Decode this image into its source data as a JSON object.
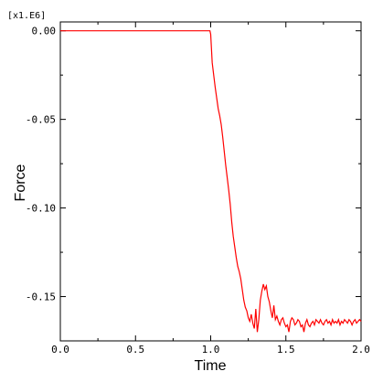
{
  "chart_data": {
    "type": "line",
    "title": "",
    "xlabel": "Time",
    "ylabel": "Force",
    "y_multiplier_label": "[x1.E6]",
    "xlim": [
      0.0,
      2.0
    ],
    "ylim": [
      -0.175,
      0.005
    ],
    "x_ticks": [
      {
        "value": 0.0,
        "label": "0.0"
      },
      {
        "value": 0.5,
        "label": "0.5"
      },
      {
        "value": 1.0,
        "label": "1.0"
      },
      {
        "value": 1.5,
        "label": "1.5"
      },
      {
        "value": 2.0,
        "label": "2.0"
      }
    ],
    "x_minor_step": 0.25,
    "y_ticks": [
      {
        "value": 0.0,
        "label": "0.00"
      },
      {
        "value": -0.05,
        "label": "-0.05"
      },
      {
        "value": -0.1,
        "label": "-0.10"
      },
      {
        "value": -0.15,
        "label": "-0.15"
      }
    ],
    "y_minor_step": 0.025,
    "grid": false,
    "series": [
      {
        "color": "#ff0000",
        "x": [
          0.0,
          0.5,
          0.995,
          1.0,
          1.01,
          1.02,
          1.03,
          1.04,
          1.05,
          1.06,
          1.07,
          1.08,
          1.09,
          1.1,
          1.11,
          1.12,
          1.13,
          1.14,
          1.15,
          1.16,
          1.17,
          1.18,
          1.19,
          1.2,
          1.21,
          1.22,
          1.23,
          1.24,
          1.25,
          1.26,
          1.27,
          1.28,
          1.29,
          1.3,
          1.31,
          1.32,
          1.33,
          1.34,
          1.35,
          1.36,
          1.37,
          1.38,
          1.39,
          1.4,
          1.41,
          1.42,
          1.43,
          1.44,
          1.45,
          1.46,
          1.47,
          1.48,
          1.49,
          1.5,
          1.51,
          1.52,
          1.53,
          1.54,
          1.55,
          1.56,
          1.57,
          1.58,
          1.59,
          1.6,
          1.61,
          1.62,
          1.63,
          1.64,
          1.65,
          1.66,
          1.67,
          1.68,
          1.69,
          1.7,
          1.71,
          1.72,
          1.73,
          1.74,
          1.75,
          1.76,
          1.77,
          1.78,
          1.79,
          1.8,
          1.81,
          1.82,
          1.83,
          1.84,
          1.85,
          1.86,
          1.87,
          1.88,
          1.89,
          1.9,
          1.91,
          1.92,
          1.93,
          1.94,
          1.95,
          1.96,
          1.97,
          1.98,
          1.99,
          2.0
        ],
        "y": [
          0.0,
          0.0,
          0.0,
          -0.002,
          -0.018,
          -0.025,
          -0.032,
          -0.038,
          -0.044,
          -0.048,
          -0.053,
          -0.06,
          -0.068,
          -0.076,
          -0.083,
          -0.09,
          -0.098,
          -0.108,
          -0.116,
          -0.122,
          -0.128,
          -0.133,
          -0.136,
          -0.14,
          -0.146,
          -0.152,
          -0.156,
          -0.158,
          -0.162,
          -0.164,
          -0.16,
          -0.165,
          -0.168,
          -0.157,
          -0.17,
          -0.163,
          -0.152,
          -0.147,
          -0.143,
          -0.146,
          -0.144,
          -0.15,
          -0.153,
          -0.158,
          -0.162,
          -0.155,
          -0.163,
          -0.161,
          -0.164,
          -0.166,
          -0.163,
          -0.162,
          -0.165,
          -0.167,
          -0.166,
          -0.17,
          -0.164,
          -0.162,
          -0.163,
          -0.166,
          -0.165,
          -0.163,
          -0.164,
          -0.167,
          -0.166,
          -0.17,
          -0.165,
          -0.163,
          -0.166,
          -0.167,
          -0.165,
          -0.164,
          -0.166,
          -0.163,
          -0.164,
          -0.165,
          -0.163,
          -0.165,
          -0.166,
          -0.164,
          -0.163,
          -0.165,
          -0.164,
          -0.166,
          -0.163,
          -0.165,
          -0.164,
          -0.165,
          -0.163,
          -0.166,
          -0.164,
          -0.165,
          -0.163,
          -0.164,
          -0.165,
          -0.163,
          -0.164,
          -0.166,
          -0.164,
          -0.163,
          -0.165,
          -0.164,
          -0.163,
          -0.164
        ]
      }
    ]
  }
}
